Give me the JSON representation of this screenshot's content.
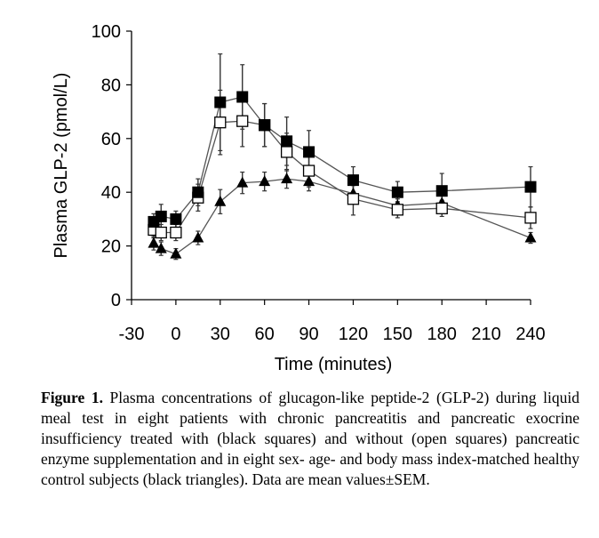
{
  "chart_data": {
    "type": "line",
    "title": "",
    "xlabel": "Time (minutes)",
    "ylabel": "Plasma GLP-2 (pmol/L)",
    "xlim": [
      -30,
      240
    ],
    "ylim": [
      0,
      100
    ],
    "xticks": [
      -30,
      0,
      30,
      60,
      90,
      120,
      150,
      180,
      210,
      240
    ],
    "yticks": [
      0,
      20,
      40,
      60,
      80,
      100
    ],
    "grid": false,
    "legend": "none",
    "x": [
      -15,
      -10,
      0,
      15,
      30,
      45,
      60,
      75,
      90,
      120,
      150,
      180,
      240
    ],
    "series": [
      {
        "name": "Chronic pancreatitis, with enzyme supplementation",
        "marker": "filled-square",
        "values": [
          29,
          31,
          30,
          40,
          73.5,
          75.5,
          65,
          59,
          55,
          44.5,
          40,
          40.5,
          42
        ],
        "sem": [
          3,
          4.5,
          3,
          5,
          18,
          12,
          8,
          9,
          8,
          5,
          4,
          6.5,
          7.5
        ]
      },
      {
        "name": "Chronic pancreatitis, without enzyme supplementation",
        "marker": "open-square",
        "values": [
          26,
          25,
          25,
          38,
          66,
          66.5,
          65,
          55,
          48,
          37.5,
          33.5,
          34,
          30.5
        ],
        "sem": [
          3,
          3,
          3,
          5,
          12,
          9.5,
          8,
          7,
          6,
          6,
          3,
          3,
          4
        ]
      },
      {
        "name": "Healthy control subjects",
        "marker": "filled-triangle",
        "values": [
          21,
          19,
          17,
          23,
          36.5,
          43.5,
          44,
          45,
          44,
          39.5,
          35,
          36,
          23
        ],
        "sem": [
          2.5,
          2.5,
          2,
          2.5,
          4.5,
          4,
          3.5,
          3.5,
          3.5,
          3,
          2.5,
          3,
          2
        ]
      }
    ]
  },
  "caption": {
    "label": "Figure 1.",
    "text": " Plasma concentrations of glucagon-like peptide-2 (GLP-2) during liquid meal test in eight patients with chronic pancreatitis and pancreatic exocrine insufficiency treated with (black squares) and without (open squares) pancreatic enzyme supplementation and in eight sex- age- and body mass index-matched healthy control subjects (black triangles). Data are mean values±SEM."
  }
}
